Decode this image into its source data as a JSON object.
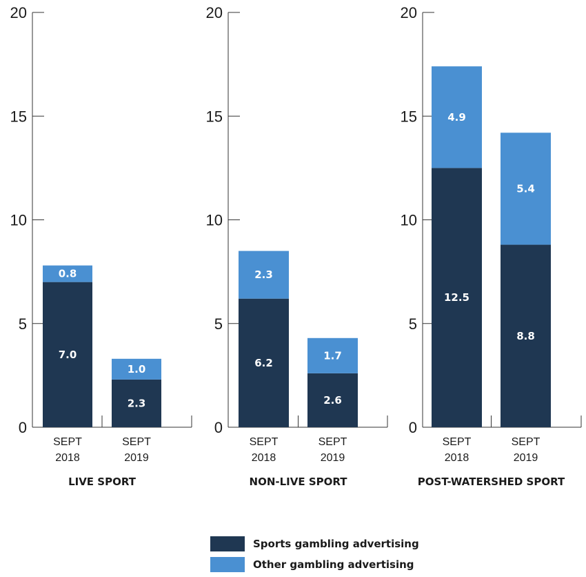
{
  "chart_data": {
    "type": "bar",
    "stacked": true,
    "ylim": [
      0,
      20
    ],
    "yticks": [
      0,
      5,
      10,
      15,
      20
    ],
    "colors": {
      "sports": "#1f3752",
      "other": "#4a90d2"
    },
    "panels": [
      {
        "title": "LIVE SPORT",
        "categories": [
          [
            "SEPT",
            "2018"
          ],
          [
            "SEPT",
            "2019"
          ]
        ],
        "series": [
          {
            "name": "Sports gambling advertising",
            "values": [
              7.0,
              2.3
            ],
            "labels": [
              "7.0",
              "2.3"
            ]
          },
          {
            "name": "Other gambling advertising",
            "values": [
              0.8,
              1.0
            ],
            "labels": [
              "0.8",
              "1.0"
            ]
          }
        ]
      },
      {
        "title": "NON-LIVE SPORT",
        "categories": [
          [
            "SEPT",
            "2018"
          ],
          [
            "SEPT",
            "2019"
          ]
        ],
        "series": [
          {
            "name": "Sports gambling advertising",
            "values": [
              6.2,
              2.6
            ],
            "labels": [
              "6.2",
              "2.6"
            ]
          },
          {
            "name": "Other gambling advertising",
            "values": [
              2.3,
              1.7
            ],
            "labels": [
              "2.3",
              "1.7"
            ]
          }
        ]
      },
      {
        "title": "POST-WATERSHED SPORT",
        "categories": [
          [
            "SEPT",
            "2018"
          ],
          [
            "SEPT",
            "2019"
          ]
        ],
        "series": [
          {
            "name": "Sports gambling advertising",
            "values": [
              12.5,
              8.8
            ],
            "labels": [
              "12.5",
              "8.8"
            ]
          },
          {
            "name": "Other gambling advertising",
            "values": [
              4.9,
              5.4
            ],
            "labels": [
              "4.9",
              "5.4"
            ]
          }
        ]
      }
    ],
    "legend": {
      "position": "bottom-center",
      "items": [
        {
          "label": "Sports gambling advertising",
          "color": "#1f3752"
        },
        {
          "label": "Other gambling advertising",
          "color": "#4a90d2"
        }
      ]
    }
  }
}
